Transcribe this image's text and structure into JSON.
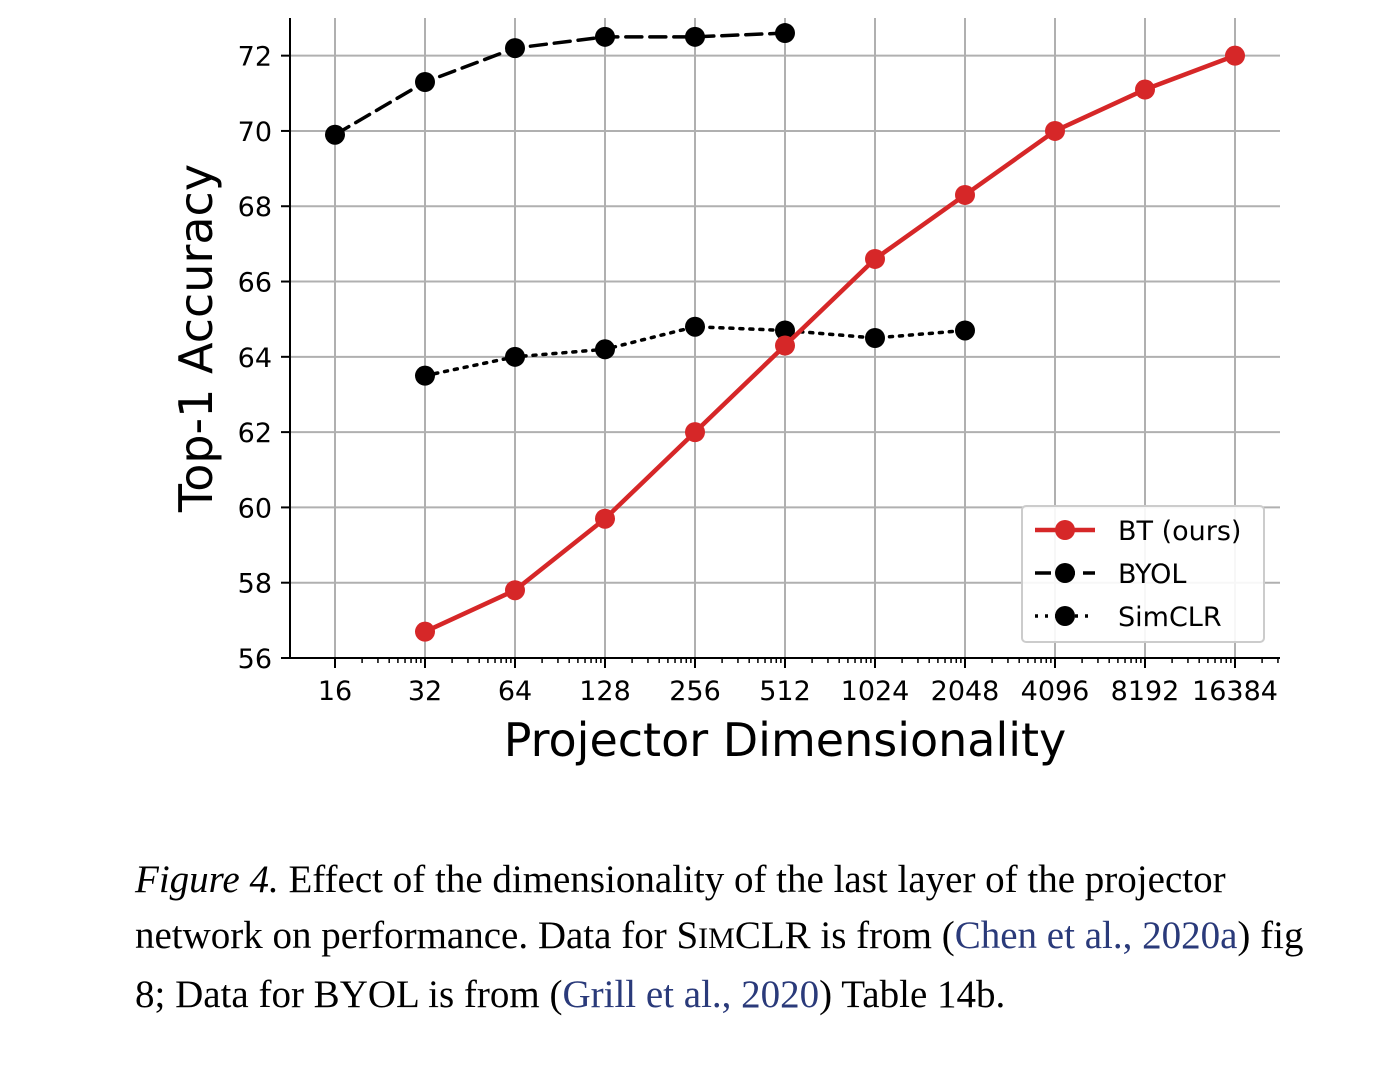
{
  "chart_data": {
    "type": "line",
    "xscale": "log2",
    "categories": [
      "16",
      "32",
      "64",
      "128",
      "256",
      "512",
      "1024",
      "2048",
      "4096",
      "8192",
      "16384"
    ],
    "xlabel": "Projector Dimensionality",
    "ylabel": "Top-1 Accuracy",
    "ylim": [
      56,
      73
    ],
    "yticks": [
      "56",
      "58",
      "60",
      "62",
      "64",
      "66",
      "68",
      "70",
      "72"
    ],
    "grid": true,
    "legend_position": "lower-right",
    "series": [
      {
        "name": "BT (ours)",
        "style": "solid",
        "color": "#d62728",
        "x": [
          32,
          64,
          128,
          256,
          512,
          1024,
          2048,
          4096,
          8192,
          16384
        ],
        "values": [
          56.7,
          57.8,
          59.7,
          62.0,
          64.3,
          66.6,
          68.3,
          70.0,
          71.1,
          72.0
        ]
      },
      {
        "name": "BYOL",
        "style": "dashed",
        "color": "#000000",
        "x": [
          16,
          32,
          64,
          128,
          256,
          512
        ],
        "values": [
          69.9,
          71.3,
          72.2,
          72.5,
          72.5,
          72.6
        ]
      },
      {
        "name": "SimCLR",
        "style": "dotted",
        "color": "#000000",
        "x": [
          32,
          64,
          128,
          256,
          512,
          1024,
          2048
        ],
        "values": [
          63.5,
          64.0,
          64.2,
          64.8,
          64.7,
          64.5,
          64.7
        ]
      }
    ]
  },
  "caption": {
    "fig_label": "Figure 4.",
    "text_1": " Effect of the dimensionality of the last layer of the projector network on performance. Data for ",
    "simclr_cap_s": "S",
    "simclr_small": "IM",
    "simclr_rest": "CLR",
    "text_2": " is from (",
    "cite_1": "Chen et al., 2020a",
    "text_3": ") fig 8; Data for BYOL is from (",
    "cite_2": "Grill et al., 2020",
    "text_4": ") Table 14b."
  }
}
